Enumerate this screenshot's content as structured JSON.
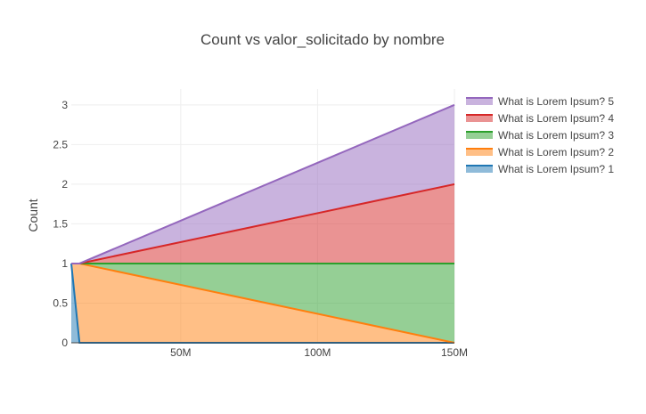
{
  "chart_data": {
    "type": "area",
    "stacked": true,
    "title": "Count vs valor_solicitado by nombre",
    "xlabel": "",
    "ylabel": "Count",
    "xlim": [
      10000000,
      150000000
    ],
    "ylim": [
      0,
      3.2
    ],
    "x_ticks": [
      {
        "value": 50000000,
        "label": "50M"
      },
      {
        "value": 100000000,
        "label": "100M"
      },
      {
        "value": 150000000,
        "label": "150M"
      }
    ],
    "y_ticks": [
      {
        "value": 0,
        "label": "0"
      },
      {
        "value": 0.5,
        "label": "0.5"
      },
      {
        "value": 1,
        "label": "1"
      },
      {
        "value": 1.5,
        "label": "1.5"
      },
      {
        "value": 2,
        "label": "2"
      },
      {
        "value": 2.5,
        "label": "2.5"
      },
      {
        "value": 3,
        "label": "3"
      }
    ],
    "grid": true,
    "legend_position": "top-right",
    "series": [
      {
        "name": "What is Lorem Ipsum? 1",
        "color": "#1f77b4",
        "fill": "rgba(31,119,180,0.5)",
        "x": [
          10000000,
          13000000,
          150000000
        ],
        "values": [
          1,
          0,
          0
        ]
      },
      {
        "name": "What is Lorem Ipsum? 2",
        "color": "#ff7f0e",
        "fill": "rgba(255,127,14,0.5)",
        "x": [
          10000000,
          13000000,
          150000000
        ],
        "values": [
          0,
          1,
          0
        ]
      },
      {
        "name": "What is Lorem Ipsum? 3",
        "color": "#2ca02c",
        "fill": "rgba(44,160,44,0.5)",
        "x": [
          10000000,
          13000000,
          150000000
        ],
        "values": [
          0,
          0,
          1
        ]
      },
      {
        "name": "What is Lorem Ipsum? 4",
        "color": "#d62728",
        "fill": "rgba(214,39,40,0.5)",
        "x": [
          10000000,
          13000000,
          150000000
        ],
        "values": [
          0,
          0,
          1
        ]
      },
      {
        "name": "What is Lorem Ipsum? 5",
        "color": "#9467bd",
        "fill": "rgba(148,103,189,0.5)",
        "x": [
          10000000,
          13000000,
          150000000
        ],
        "values": [
          0,
          0,
          1
        ]
      }
    ]
  }
}
